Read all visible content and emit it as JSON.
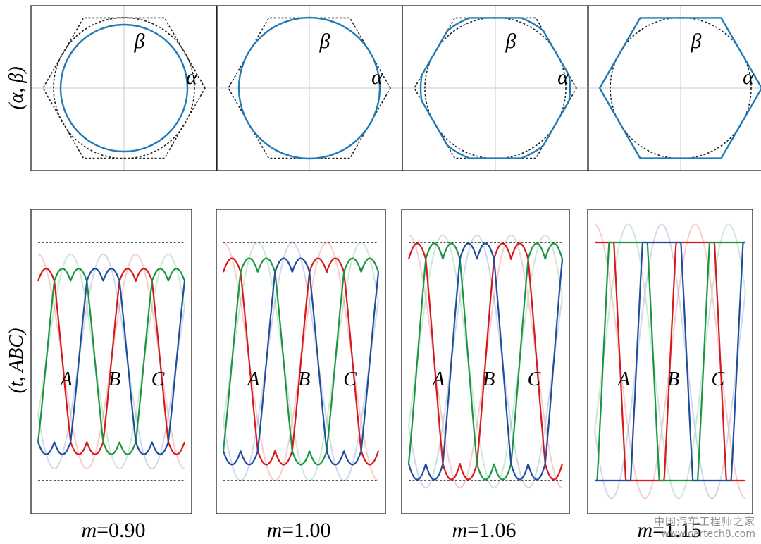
{
  "figure": {
    "row_labels": {
      "alpha_beta": "(α, β)",
      "time_abc": "(t, ABC)"
    },
    "axis_names": {
      "alpha": "α",
      "beta": "β"
    },
    "phase_names": [
      "A",
      "B",
      "C"
    ],
    "caption_symbol": "m",
    "caption_sep": "=",
    "colors": {
      "circle": "#1f7ab5",
      "hexagon": "#1f7ab5",
      "reference": "#222222",
      "phase_A": "#d7191c",
      "phase_B": "#1a9641",
      "phase_C": "#1f4e9e"
    }
  },
  "chart_data": [
    {
      "type": "line",
      "panel": "alpha-beta trajectory",
      "m": 0.9,
      "m_label": "0.90",
      "reference_hexagon_circumradius": 1.15,
      "reference_inscribed_circle_radius": 1.0,
      "trajectory": "circle",
      "trajectory_radius": 0.9
    },
    {
      "type": "line",
      "panel": "alpha-beta trajectory",
      "m": 1.0,
      "m_label": "1.00",
      "reference_hexagon_circumradius": 1.15,
      "reference_inscribed_circle_radius": 1.0,
      "trajectory": "circle",
      "trajectory_radius": 1.0
    },
    {
      "type": "line",
      "panel": "alpha-beta trajectory",
      "m": 1.06,
      "m_label": "1.06",
      "reference_hexagon_circumradius": 1.15,
      "reference_inscribed_circle_radius": 1.0,
      "trajectory": "circle clipped by hexagon",
      "trajectory_radius": 1.06
    },
    {
      "type": "line",
      "panel": "alpha-beta trajectory",
      "m": 1.15,
      "m_label": "1.15",
      "reference_hexagon_circumradius": 1.15,
      "reference_inscribed_circle_radius": 1.0,
      "trajectory": "hexagon",
      "trajectory_radius": 1.15
    },
    {
      "type": "line",
      "panel": "phase voltage vs time",
      "m": 0.9,
      "series": [
        "A",
        "B",
        "C"
      ],
      "cycles": 1.5,
      "limits": [
        -1,
        1
      ],
      "ghost_sine_amplitude": 0.9
    },
    {
      "type": "line",
      "panel": "phase voltage vs time",
      "m": 1.0,
      "series": [
        "A",
        "B",
        "C"
      ],
      "cycles": 1.5,
      "limits": [
        -1,
        1
      ],
      "ghost_sine_amplitude": 1.0
    },
    {
      "type": "line",
      "panel": "phase voltage vs time",
      "m": 1.06,
      "series": [
        "A",
        "B",
        "C"
      ],
      "cycles": 1.5,
      "limits": [
        -1,
        1
      ],
      "ghost_sine_amplitude": 1.06
    },
    {
      "type": "line",
      "panel": "phase voltage vs time",
      "m": 1.15,
      "series": [
        "A",
        "B",
        "C"
      ],
      "cycles": 1.5,
      "limits": [
        -1,
        1
      ],
      "ghost_sine_amplitude": 1.15
    }
  ],
  "watermark": {
    "line1": "中国汽车工程师之家",
    "line2": "www.cartech8.com"
  }
}
